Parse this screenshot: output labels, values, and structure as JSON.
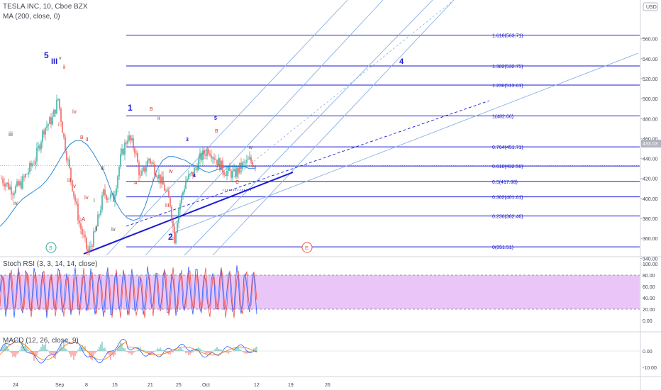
{
  "header": {
    "symbol_title": "TESLA INC, 10, Cboe BZX",
    "ma_label": "MA (200, close, 0)",
    "stoch_label": "Stoch RSI (3, 3, 14, 14, close)",
    "macd_label": "MACD (12, 26, close, 9)",
    "currency": "USD",
    "price_badge": "433.03"
  },
  "colors": {
    "fib": "#1a1ad6",
    "channel": "#8ab0e8",
    "candle_up": "#26a69a",
    "candle_down": "#ef5350",
    "ma": "#2d8bd6",
    "stoch_k": "#2962ff",
    "stoch_d": "#ef5350",
    "stoch_band": "#e9c6f7",
    "wave_blue": "#1a1ad6",
    "wave_red": "#d03a2a",
    "wave_gray": "#555555"
  },
  "chart_data": [
    {
      "type": "candlestick",
      "title": "TESLA INC, 10, Cboe BZX",
      "ylim": [
        330,
        577
      ],
      "y_ticks": [
        "560.00",
        "540.00",
        "520.00",
        "500.00",
        "480.00",
        "460.00",
        "440.00",
        "420.00",
        "400.00",
        "380.00",
        "360.00",
        "340.00"
      ],
      "x_ticks": [
        "24",
        "Sep",
        "8",
        "15",
        "21",
        "25",
        "Oct",
        "12",
        "19",
        "26"
      ],
      "fib_levels": [
        {
          "label": "1.618(563.71)",
          "value": 563.71
        },
        {
          "label": "1.382(532.75)",
          "value": 532.75
        },
        {
          "label": "1.236(513.61)",
          "value": 513.61
        },
        {
          "label": "1(482.66)",
          "value": 482.66
        },
        {
          "label": "0.764(451.71)",
          "value": 451.71
        },
        {
          "label": "0.618(432.56)",
          "value": 432.56
        },
        {
          "label": "0.5(417.08)",
          "value": 417.08
        },
        {
          "label": "0.382(401.61)",
          "value": 401.61
        },
        {
          "label": "0.236(382.46)",
          "value": 382.46
        },
        {
          "label": "0(351.51)",
          "value": 351.51
        }
      ],
      "wave_labels": [
        {
          "text": "5",
          "color": "blue"
        },
        {
          "text": "III",
          "color": "blue"
        },
        {
          "text": "v",
          "color": "gray"
        },
        {
          "text": "ii",
          "color": "red"
        },
        {
          "text": "iii",
          "color": "gray"
        },
        {
          "text": "iv",
          "color": "red"
        },
        {
          "text": "i",
          "color": "red"
        },
        {
          "text": "B",
          "color": "red"
        },
        {
          "text": "ii",
          "color": "red"
        },
        {
          "text": "iii",
          "color": "red"
        },
        {
          "text": "iv",
          "color": "gray"
        },
        {
          "text": "v",
          "color": "red"
        },
        {
          "text": "A",
          "color": "red"
        },
        {
          "text": "iv",
          "color": "red"
        },
        {
          "text": "i",
          "color": "gray"
        },
        {
          "text": "ii",
          "color": "red"
        },
        {
          "text": "iii",
          "color": "gray"
        },
        {
          "text": "iv",
          "color": "gray"
        },
        {
          "text": "1",
          "color": "blue"
        },
        {
          "text": "B",
          "color": "red"
        },
        {
          "text": "ii",
          "color": "red"
        },
        {
          "text": "A",
          "color": "red"
        },
        {
          "text": "i",
          "color": "red"
        },
        {
          "text": "iv",
          "color": "red"
        },
        {
          "text": "iii",
          "color": "red"
        },
        {
          "text": "2",
          "color": "blue"
        },
        {
          "text": "c",
          "color": "red"
        },
        {
          "text": "3",
          "color": "blue"
        },
        {
          "text": "5",
          "color": "blue"
        },
        {
          "text": "B",
          "color": "red"
        },
        {
          "text": "4",
          "color": "blue"
        },
        {
          "text": "A",
          "color": "red"
        },
        {
          "text": "C",
          "color": "red"
        },
        {
          "text": "4",
          "color": "blue"
        },
        {
          "text": "iv",
          "color": "gray"
        }
      ],
      "markers": [
        "S",
        "E"
      ],
      "series": [
        {
          "name": "MA (200, close, 0)",
          "values": [
            372,
            378,
            386,
            394,
            400,
            404,
            408,
            412,
            418,
            426,
            436,
            446,
            454,
            458,
            458,
            454,
            446,
            436,
            426,
            410,
            396,
            386,
            380,
            378,
            380,
            392,
            410,
            428,
            438,
            442,
            442,
            440,
            438,
            434,
            432,
            428,
            426,
            428,
            430,
            432,
            432,
            432,
            432,
            430,
            430
          ]
        }
      ]
    },
    {
      "type": "line",
      "title": "Stoch RSI (3, 3, 14, 14, close)",
      "ylim": [
        0,
        100
      ],
      "y_ticks": [
        "100.00",
        "80.00",
        "60.00",
        "40.00",
        "20.00",
        "0.00"
      ],
      "bands": [
        20,
        80
      ]
    },
    {
      "type": "bar",
      "title": "MACD (12, 26, close, 9)",
      "ylim": [
        -14,
        10
      ],
      "y_ticks": [
        "0.00",
        "-10.00"
      ]
    }
  ]
}
